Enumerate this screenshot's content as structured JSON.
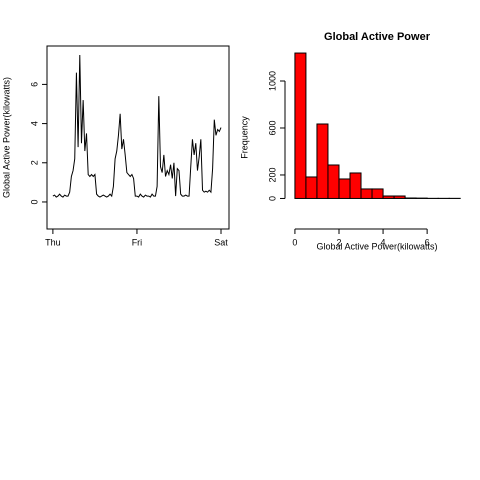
{
  "chart_data": [
    {
      "type": "line",
      "ylabel": "Global Active Power(kilowatts)",
      "color": "#000000",
      "x": [
        0,
        0.02,
        0.04,
        0.06,
        0.08,
        0.1,
        0.12,
        0.14,
        0.16,
        0.18,
        0.2,
        0.22,
        0.24,
        0.26,
        0.28,
        0.3,
        0.32,
        0.34,
        0.36,
        0.38,
        0.4,
        0.42,
        0.44,
        0.46,
        0.48,
        0.5,
        0.52,
        0.54,
        0.56,
        0.58,
        0.6,
        0.62,
        0.64,
        0.66,
        0.68,
        0.7,
        0.72,
        0.74,
        0.76,
        0.78,
        0.8,
        0.82,
        0.84,
        0.86,
        0.88,
        0.9,
        0.92,
        0.94,
        0.96,
        0.98,
        1,
        1.02,
        1.04,
        1.06,
        1.08,
        1.1,
        1.12,
        1.14,
        1.16,
        1.18,
        1.2,
        1.22,
        1.24,
        1.26,
        1.28,
        1.3,
        1.32,
        1.34,
        1.36,
        1.38,
        1.4,
        1.42,
        1.44,
        1.46,
        1.48,
        1.5,
        1.52,
        1.54,
        1.56,
        1.58,
        1.6,
        1.62,
        1.64,
        1.66,
        1.68,
        1.7,
        1.72,
        1.74,
        1.76,
        1.78,
        1.8,
        1.82,
        1.84,
        1.86,
        1.88,
        1.9,
        1.92,
        1.94,
        1.96,
        1.98,
        2
      ],
      "values": [
        0.3,
        0.35,
        0.25,
        0.3,
        0.4,
        0.3,
        0.25,
        0.35,
        0.3,
        0.3,
        0.5,
        1.3,
        1.6,
        2.2,
        6.6,
        2.8,
        7.5,
        3.0,
        5.2,
        2.6,
        3.5,
        1.4,
        1.3,
        1.4,
        1.3,
        1.4,
        0.4,
        0.3,
        0.25,
        0.3,
        0.35,
        0.3,
        0.25,
        0.3,
        0.4,
        0.3,
        0.8,
        2.2,
        2.6,
        3.4,
        4.5,
        2.7,
        3.2,
        2.4,
        1.5,
        1.4,
        1.3,
        1.4,
        1.2,
        0.3,
        0.3,
        0.25,
        0.4,
        0.3,
        0.25,
        0.35,
        0.3,
        0.3,
        0.25,
        0.4,
        0.3,
        0.3,
        0.8,
        5.4,
        1.8,
        1.5,
        2.4,
        1.3,
        1.6,
        1.4,
        1.9,
        1.2,
        2.0,
        0.3,
        1.7,
        1.6,
        0.4,
        0.3,
        0.3,
        0.35,
        0.3,
        0.3,
        1.8,
        3.2,
        2.4,
        3.0,
        1.6,
        2.3,
        3.2,
        0.6,
        0.5,
        0.55,
        0.5,
        0.6,
        0.5,
        1.7,
        4.2,
        3.4,
        3.7,
        3.6,
        3.8
      ],
      "xlim": [
        -0.07,
        2.095
      ],
      "xticks": [
        {
          "value": 0,
          "label": "Thu"
        },
        {
          "value": 1,
          "label": "Fri"
        },
        {
          "value": 2,
          "label": "Sat"
        }
      ],
      "ylim": [
        -1.38,
        7.96
      ],
      "yticks": [
        0,
        2,
        4,
        6
      ]
    },
    {
      "type": "histogram",
      "title": "Global Active Power",
      "xlabel": "Global Active Power(kilowatts)",
      "ylabel": "Frequency",
      "color": "#ff0000",
      "bins": [
        0,
        0.5,
        1,
        1.5,
        2,
        2.5,
        3,
        3.5,
        4,
        4.5,
        5,
        5.5,
        6,
        6.5,
        7,
        7.5
      ],
      "values": [
        1238,
        183,
        634,
        285,
        166,
        217,
        81,
        81,
        21,
        21,
        4,
        3,
        1,
        1,
        1
      ],
      "xlim": [
        -0.45,
        7.9
      ],
      "xticks": [
        0,
        2,
        4,
        6
      ],
      "ylim": [
        -260,
        1298
      ],
      "yticks": [
        0,
        200,
        600,
        1000
      ]
    }
  ]
}
